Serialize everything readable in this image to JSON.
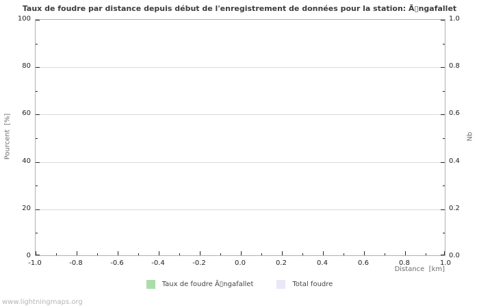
{
  "title": "Taux de foudre par distance depuis début de l'enregistrement de données pour la station: Ã▯ngafallet",
  "watermark": "www.lightningmaps.org",
  "colors": {
    "series_rate": "#aaddaa",
    "series_total": "#e8e8f8",
    "grid": "#d8d8d8",
    "plot_border": "#b0b0b0",
    "tick_text": "#222222",
    "axis_label_text": "#6e6e6e",
    "title_text": "#3c3c3c",
    "watermark_text": "#b4b4b4"
  },
  "axes": {
    "x": {
      "label": "Distance  [km]",
      "min": -1.0,
      "max": 1.0,
      "tick_labels": [
        "-1.0",
        "-0.8",
        "-0.6",
        "-0.4",
        "-0.2",
        "0.0",
        "0.2",
        "0.4",
        "0.6",
        "0.8",
        "1.0"
      ]
    },
    "y_left": {
      "label": "Pourcent  [%]",
      "min": 0,
      "max": 100,
      "tick_labels": [
        "0",
        "20",
        "40",
        "60",
        "80",
        "100"
      ]
    },
    "y_right": {
      "label": "Nb",
      "min": 0.0,
      "max": 1.0,
      "tick_labels": [
        "0.0",
        "0.2",
        "0.4",
        "0.6",
        "0.8",
        "1.0"
      ]
    }
  },
  "legend": [
    {
      "label": "Taux de foudre Ã▯ngafallet",
      "color": "#aaddaa"
    },
    {
      "label": "Total foudre",
      "color": "#e8e8f8"
    }
  ],
  "chart_data": {
    "type": "area",
    "title": "Taux de foudre par distance depuis début de l'enregistrement de données pour la station: Ã▯ngafallet",
    "xlabel": "Distance [km]",
    "ylabel_left": "Pourcent [%]",
    "ylabel_right": "Nb",
    "xlim": [
      -1.0,
      1.0
    ],
    "ylim_left": [
      0,
      100
    ],
    "ylim_right": [
      0.0,
      1.0
    ],
    "x_major_step": 0.2,
    "x_minor_step": 0.1,
    "y_left_major_step": 20,
    "y_left_minor_step": 10,
    "y_right_major_step": 0.2,
    "y_right_minor_step": 0.1,
    "grid": "horizontal-only",
    "legend_position": "bottom-center",
    "series": [
      {
        "name": "Taux de foudre Ã▯ngafallet",
        "color": "#aaddaa",
        "x": [],
        "values": []
      },
      {
        "name": "Total foudre",
        "color": "#e8e8f8",
        "x": [],
        "values": []
      }
    ]
  }
}
